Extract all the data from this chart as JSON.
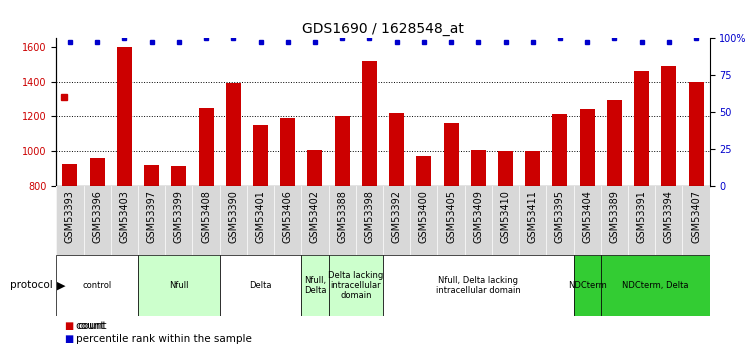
{
  "title": "GDS1690 / 1628548_at",
  "samples": [
    "GSM53393",
    "GSM53396",
    "GSM53403",
    "GSM53397",
    "GSM53399",
    "GSM53408",
    "GSM53390",
    "GSM53401",
    "GSM53406",
    "GSM53402",
    "GSM53388",
    "GSM53398",
    "GSM53392",
    "GSM53400",
    "GSM53405",
    "GSM53409",
    "GSM53410",
    "GSM53411",
    "GSM53395",
    "GSM53404",
    "GSM53389",
    "GSM53391",
    "GSM53394",
    "GSM53407"
  ],
  "counts": [
    930,
    960,
    1600,
    920,
    915,
    1250,
    1390,
    1150,
    1190,
    1010,
    1200,
    1520,
    1220,
    975,
    1165,
    1010,
    1005,
    1005,
    1215,
    1245,
    1295,
    1460,
    1490,
    1395
  ],
  "percentile": [
    97,
    97,
    100,
    97,
    97,
    100,
    100,
    97,
    97,
    97,
    100,
    100,
    97,
    97,
    97,
    97,
    97,
    97,
    100,
    97,
    100,
    97,
    97,
    100
  ],
  "bar_color": "#cc0000",
  "dot_color": "#0000cc",
  "ylim_left": [
    800,
    1650
  ],
  "ylim_right": [
    0,
    100
  ],
  "yticks_left": [
    800,
    1000,
    1200,
    1400,
    1600
  ],
  "yticks_right": [
    0,
    25,
    50,
    75,
    100
  ],
  "ytick_labels_right": [
    "0",
    "25",
    "50",
    "75",
    "100%"
  ],
  "dotted_lines": [
    1000,
    1200,
    1400
  ],
  "protocols": [
    {
      "label": "control",
      "start": 0,
      "end": 3,
      "color": "#ffffff"
    },
    {
      "label": "Nfull",
      "start": 3,
      "end": 6,
      "color": "#ccffcc"
    },
    {
      "label": "Delta",
      "start": 6,
      "end": 9,
      "color": "#ffffff"
    },
    {
      "label": "Nfull,\nDelta",
      "start": 9,
      "end": 10,
      "color": "#ccffcc"
    },
    {
      "label": "Delta lacking\nintracellular\ndomain",
      "start": 10,
      "end": 12,
      "color": "#ccffcc"
    },
    {
      "label": "Nfull, Delta lacking\nintracellular domain",
      "start": 12,
      "end": 19,
      "color": "#ffffff"
    },
    {
      "label": "NDCterm",
      "start": 19,
      "end": 20,
      "color": "#33cc33"
    },
    {
      "label": "NDCterm, Delta",
      "start": 20,
      "end": 24,
      "color": "#33cc33"
    }
  ],
  "bar_width": 0.55,
  "tick_fontsize": 7,
  "label_fontsize": 7.5,
  "title_fontsize": 10
}
